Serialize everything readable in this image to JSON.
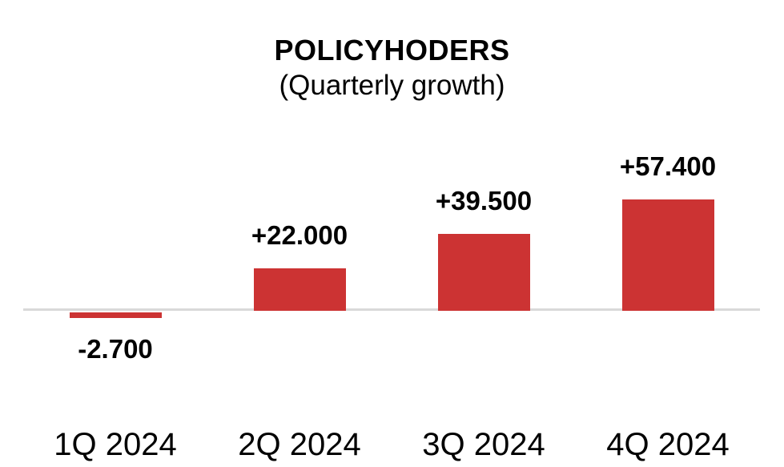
{
  "chart_data": {
    "type": "bar",
    "title": "POLICYHODERS",
    "subtitle": "(Quarterly growth)",
    "categories": [
      "1Q 2024",
      "2Q 2024",
      "3Q 2024",
      "4Q 2024"
    ],
    "values": [
      -2700,
      22000,
      39500,
      57400
    ],
    "data_labels": [
      "-2.700",
      "+22.000",
      "+39.500",
      "+57.400"
    ],
    "bar_color": "#CC3333",
    "zero_line_color": "#D9D9D9",
    "text_color": "#000000",
    "background_color": "#FFFFFF",
    "xlabel": "",
    "ylabel": "",
    "ylim": [
      -5000,
      60000
    ],
    "grid": false,
    "legend": false,
    "data_label_position": "outside-end"
  }
}
